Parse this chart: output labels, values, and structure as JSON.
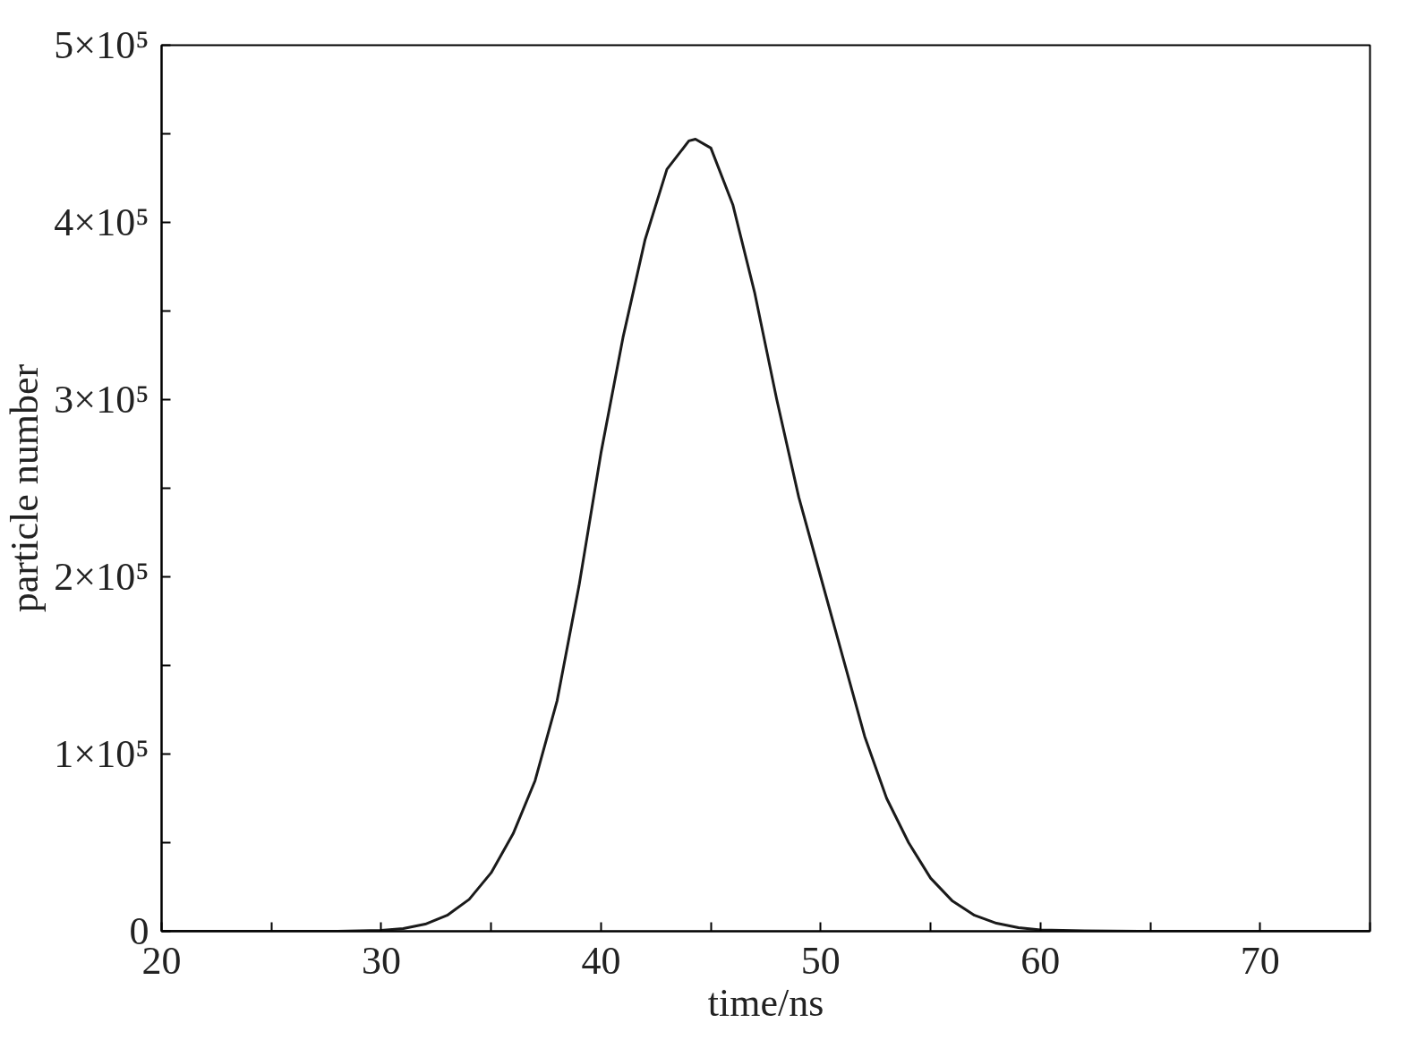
{
  "chart_data": {
    "type": "line",
    "xlabel": "time/ns",
    "ylabel": "particle number",
    "xlim": [
      20,
      75
    ],
    "ylim": [
      0,
      500000
    ],
    "xticks": [
      20,
      {
        "value": 25,
        "label": null
      },
      30,
      {
        "value": 35,
        "label": null
      },
      40,
      {
        "value": 45,
        "label": null
      },
      50,
      {
        "value": 55,
        "label": null
      },
      60,
      {
        "value": 65,
        "label": null
      },
      70,
      {
        "value": 75,
        "label": null
      }
    ],
    "yticks": [
      0,
      {
        "value": 50000,
        "label": null
      },
      {
        "value": 100000,
        "label": "1×10⁵"
      },
      {
        "value": 150000,
        "label": null
      },
      {
        "value": 200000,
        "label": "2×10⁵"
      },
      {
        "value": 250000,
        "label": null
      },
      {
        "value": 300000,
        "label": "3×10⁵"
      },
      {
        "value": 350000,
        "label": null
      },
      {
        "value": 400000,
        "label": "4×10⁵"
      },
      {
        "value": 450000,
        "label": null
      },
      {
        "value": 500000,
        "label": "5×10⁵"
      }
    ],
    "grid": false,
    "marker": "none",
    "line_style": "solid",
    "x": [
      20,
      25,
      28,
      30,
      31,
      32,
      33,
      34,
      35,
      36,
      37,
      38,
      39,
      40,
      41,
      42,
      43,
      44,
      44.3,
      45,
      46,
      47,
      48,
      49,
      50,
      51,
      52,
      53,
      54,
      55,
      56,
      57,
      58,
      59,
      60,
      62,
      65,
      70,
      75
    ],
    "series": [
      {
        "color": "#1a1a1a",
        "values": [
          0,
          0,
          0,
          500,
          1500,
          4000,
          9000,
          18000,
          33000,
          55000,
          85000,
          130000,
          195000,
          270000,
          335000,
          390000,
          430000,
          446000,
          447000,
          442000,
          410000,
          360000,
          300000,
          245000,
          200000,
          155000,
          110000,
          75000,
          50000,
          30000,
          17000,
          9000,
          4500,
          2000,
          800,
          200,
          0,
          0,
          0
        ]
      }
    ]
  }
}
